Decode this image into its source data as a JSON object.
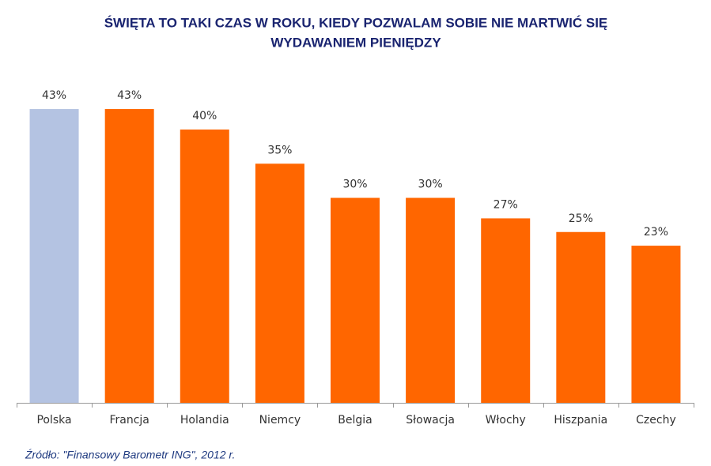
{
  "chart_data": {
    "type": "bar",
    "title": [
      "ŚWIĘTA TO TAKI CZAS W ROKU, KIEDY POZWALAM SOBIE NIE MARTWIĆ SIĘ",
      "WYDAWANIEM PIENIĘDZY"
    ],
    "categories": [
      "Polska",
      "Francja",
      "Holandia",
      "Niemcy",
      "Belgia",
      "Słowacja",
      "Włochy",
      "Hiszpania",
      "Czechy"
    ],
    "values": [
      43,
      43,
      40,
      35,
      30,
      30,
      27,
      25,
      23
    ],
    "value_labels": [
      "43%",
      "43%",
      "40%",
      "35%",
      "30%",
      "30%",
      "27%",
      "25%",
      "23%"
    ],
    "colors": [
      "#b4c3e2",
      "#ff6600",
      "#ff6600",
      "#ff6600",
      "#ff6600",
      "#ff6600",
      "#ff6600",
      "#ff6600",
      "#ff6600"
    ],
    "source": "Źródło:  \"Finansowy Barometr ING\", 2012 r."
  }
}
